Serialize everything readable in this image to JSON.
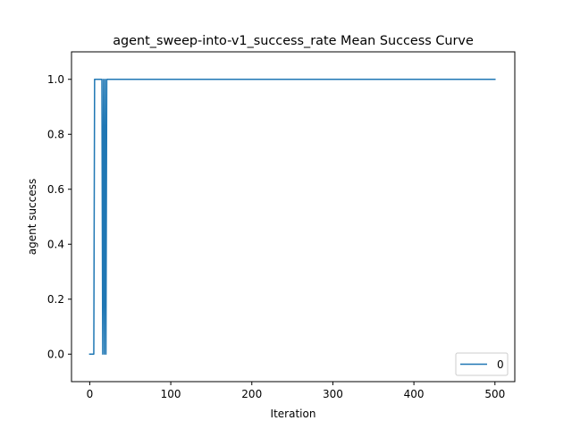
{
  "chart_data": {
    "type": "line",
    "title": "agent_sweep-into-v1_success_rate Mean Success Curve",
    "xlabel": "Iteration",
    "ylabel": "agent success",
    "xlim": [
      -22.5,
      524.5
    ],
    "ylim": [
      -0.1,
      1.1
    ],
    "x_ticks": [
      0,
      100,
      200,
      300,
      400,
      500
    ],
    "y_ticks": [
      0.0,
      0.2,
      0.4,
      0.6,
      0.8,
      1.0
    ],
    "x_tick_labels": [
      "0",
      "100",
      "200",
      "300",
      "400",
      "500"
    ],
    "y_tick_labels": [
      "0.0",
      "0.2",
      "0.4",
      "0.6",
      "0.8",
      "1.0"
    ],
    "grid": false,
    "legend_position": "lower-right",
    "series": [
      {
        "name": "0",
        "color": "#1f77b4",
        "x": [
          0,
          1,
          2,
          3,
          4,
          5,
          6,
          7,
          8,
          9,
          10,
          11,
          12,
          13,
          14,
          15,
          16,
          17,
          18,
          19,
          20,
          21,
          22,
          23,
          24,
          25,
          30,
          50,
          100,
          200,
          300,
          400,
          500
        ],
        "y": [
          0,
          0,
          0,
          0,
          0,
          0,
          1,
          1,
          1,
          1,
          1,
          1,
          1,
          1,
          1,
          1,
          0,
          1,
          0,
          1,
          0,
          1,
          1,
          1,
          1,
          1,
          1,
          1,
          1,
          1,
          1,
          1,
          1
        ]
      }
    ]
  }
}
